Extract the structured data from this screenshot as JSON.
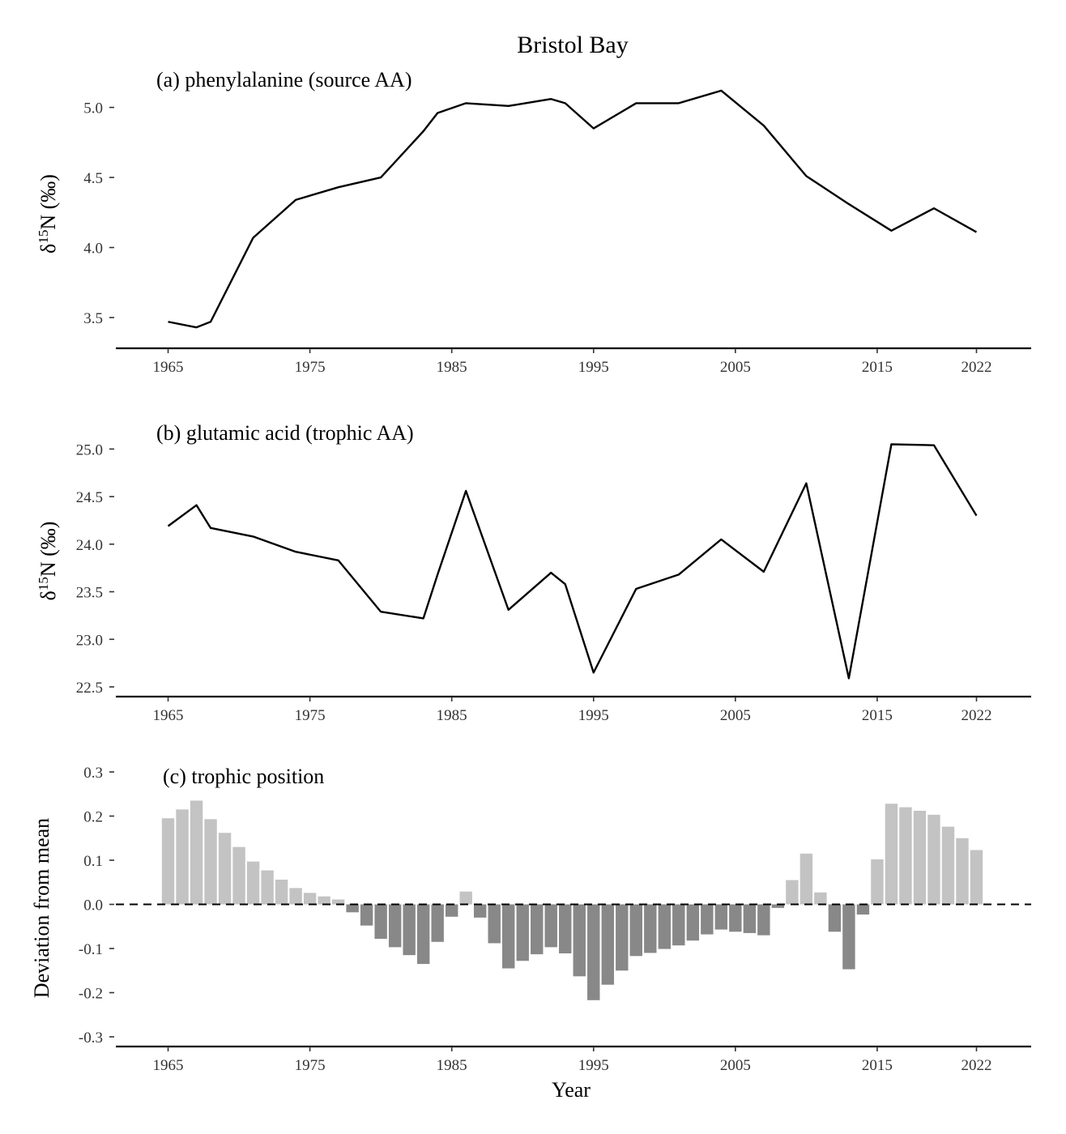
{
  "title": "Bristol Bay",
  "colors": {
    "positive_bar": "#c3c3c3",
    "negative_bar": "#888888",
    "line": "#000000"
  },
  "chart_data": [
    {
      "type": "line",
      "panel_label": "(a) phenylalanine (source AA)",
      "ylabel_prefix": "δ",
      "ylabel_sup": "15",
      "ylabel_suffix": "N (‰)",
      "xlabel": "",
      "xlim": [
        1962,
        2025
      ],
      "ylim": [
        3.35,
        5.2
      ],
      "x_ticks": [
        1965,
        1975,
        1985,
        1995,
        2005,
        2015,
        2022
      ],
      "y_ticks": [
        3.5,
        4.0,
        4.5,
        5.0
      ],
      "y_tick_labels": [
        "3.5",
        "4.0",
        "4.5",
        "5.0"
      ],
      "x": [
        1965,
        1967,
        1968,
        1971,
        1974,
        1977,
        1980,
        1983,
        1984,
        1986,
        1989,
        1992,
        1993,
        1995,
        1998,
        2001,
        2004,
        2007,
        2010,
        2013,
        2016,
        2019,
        2022
      ],
      "y": [
        3.47,
        3.43,
        3.47,
        4.07,
        4.34,
        4.43,
        4.5,
        4.83,
        4.96,
        5.03,
        5.01,
        5.06,
        5.03,
        4.85,
        5.03,
        5.03,
        5.12,
        4.87,
        4.51,
        4.31,
        4.12,
        4.28,
        4.11
      ]
    },
    {
      "type": "line",
      "panel_label": "(b) glutamic acid (trophic AA)",
      "ylabel_prefix": "δ",
      "ylabel_sup": "15",
      "ylabel_suffix": "N (‰)",
      "xlabel": "",
      "xlim": [
        1962,
        2025
      ],
      "ylim": [
        22.5,
        25.25
      ],
      "x_ticks": [
        1965,
        1975,
        1985,
        1995,
        2005,
        2015,
        2022
      ],
      "y_ticks": [
        22.5,
        23.0,
        23.5,
        24.0,
        24.5,
        25.0
      ],
      "y_tick_labels": [
        "22.5",
        "23.0",
        "23.5",
        "24.0",
        "24.5",
        "25.0"
      ],
      "x": [
        1965,
        1967,
        1968,
        1971,
        1974,
        1977,
        1980,
        1983,
        1984,
        1986,
        1989,
        1992,
        1993,
        1995,
        1998,
        2001,
        2004,
        2007,
        2010,
        2013,
        2016,
        2019,
        2022
      ],
      "y": [
        24.19,
        24.41,
        24.17,
        24.08,
        23.92,
        23.83,
        23.29,
        23.22,
        23.68,
        24.56,
        23.31,
        23.7,
        23.58,
        22.65,
        23.53,
        23.68,
        24.05,
        23.71,
        24.64,
        22.59,
        25.05,
        25.04,
        24.3
      ]
    },
    {
      "type": "bar",
      "panel_label": "(c) trophic position",
      "ylabel": "Deviation from mean",
      "xlabel": "Year",
      "xlim": [
        1962,
        2025
      ],
      "ylim": [
        -0.3,
        0.3
      ],
      "x_ticks": [
        1965,
        1975,
        1985,
        1995,
        2005,
        2015,
        2022
      ],
      "y_ticks": [
        -0.3,
        -0.2,
        -0.1,
        0.0,
        0.1,
        0.2,
        0.3
      ],
      "y_tick_labels": [
        "-0.3",
        "-0.2",
        "-0.1",
        "0.0",
        "0.1",
        "0.2",
        "0.3"
      ],
      "reference_line": 0.0,
      "x": [
        1965,
        1966,
        1967,
        1968,
        1969,
        1970,
        1971,
        1972,
        1973,
        1974,
        1975,
        1976,
        1977,
        1978,
        1979,
        1980,
        1981,
        1982,
        1983,
        1984,
        1985,
        1986,
        1987,
        1988,
        1989,
        1990,
        1991,
        1992,
        1993,
        1994,
        1995,
        1996,
        1997,
        1998,
        1999,
        2000,
        2001,
        2002,
        2003,
        2004,
        2005,
        2006,
        2007,
        2008,
        2009,
        2010,
        2011,
        2012,
        2013,
        2014,
        2015,
        2016,
        2017,
        2018,
        2019,
        2020,
        2021,
        2022
      ],
      "values": [
        0.195,
        0.215,
        0.235,
        0.193,
        0.162,
        0.13,
        0.097,
        0.077,
        0.056,
        0.037,
        0.026,
        0.018,
        0.011,
        -0.018,
        -0.048,
        -0.078,
        -0.097,
        -0.115,
        -0.135,
        -0.085,
        -0.028,
        0.029,
        -0.03,
        -0.088,
        -0.145,
        -0.128,
        -0.113,
        -0.097,
        -0.111,
        -0.163,
        -0.217,
        -0.182,
        -0.15,
        -0.117,
        -0.11,
        -0.101,
        -0.093,
        -0.082,
        -0.068,
        -0.057,
        -0.062,
        -0.065,
        -0.07,
        -0.008,
        0.055,
        0.115,
        0.027,
        -0.062,
        -0.147,
        -0.023,
        0.102,
        0.228,
        0.22,
        0.212,
        0.203,
        0.176,
        0.15,
        0.123
      ]
    }
  ]
}
